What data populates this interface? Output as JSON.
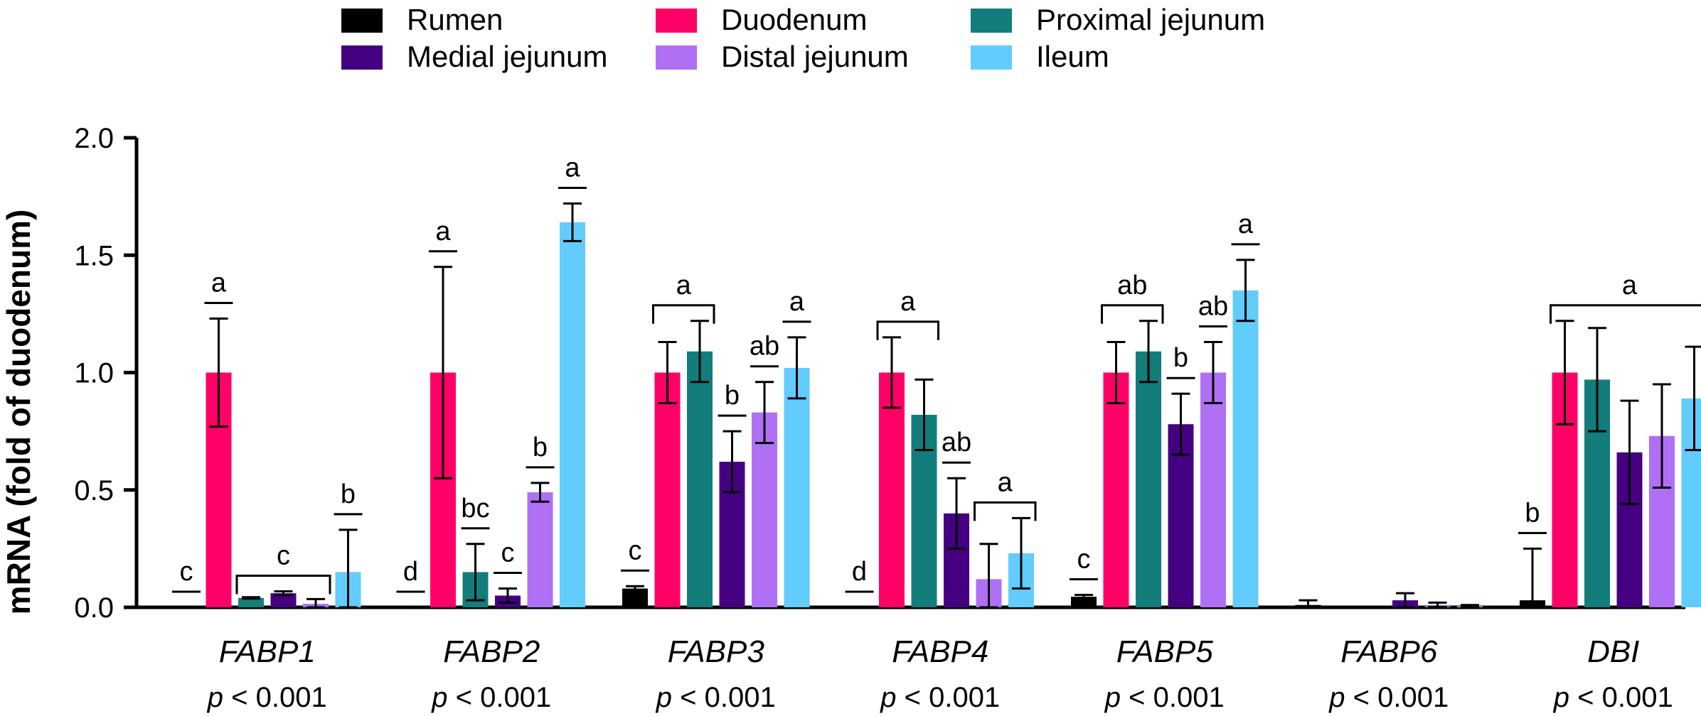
{
  "chart_data": {
    "type": "bar",
    "title": "",
    "ylabel": "mRNA (fold of duodenum)",
    "xlabel": "",
    "ylim": [
      0,
      2.0
    ],
    "yticks": [
      "0.0",
      "0.5",
      "1.0",
      "1.5",
      "2.0"
    ],
    "categories": [
      "FABP1",
      "FABP2",
      "FABP3",
      "FABP4",
      "FABP5",
      "FABP6",
      "DBI"
    ],
    "p_values": [
      "p < 0.001",
      "p < 0.001",
      "p < 0.001",
      "p < 0.001",
      "p < 0.001",
      "p < 0.001",
      "p < 0.001"
    ],
    "series": [
      {
        "name": "Rumen",
        "color": "#000000",
        "values": [
          0.0,
          0.0,
          0.08,
          0.0,
          0.045,
          0.01,
          0.03
        ],
        "errors": [
          0.0,
          0.0,
          0.01,
          0.0,
          0.008,
          0.02,
          0.22
        ]
      },
      {
        "name": "Duodenum",
        "color": "#ff0066",
        "values": [
          1.0,
          1.0,
          1.0,
          1.0,
          1.0,
          0.0,
          1.0
        ],
        "errors": [
          0.23,
          0.45,
          0.13,
          0.15,
          0.13,
          0.0,
          0.22
        ]
      },
      {
        "name": "Proximal jejunum",
        "color": "#127d7a",
        "values": [
          0.04,
          0.15,
          1.09,
          0.82,
          1.09,
          0.0,
          0.97
        ],
        "errors": [
          0.003,
          0.12,
          0.13,
          0.15,
          0.13,
          0.0,
          0.22
        ]
      },
      {
        "name": "Medial jejunum",
        "color": "#450082",
        "values": [
          0.06,
          0.05,
          0.62,
          0.4,
          0.78,
          0.03,
          0.66
        ],
        "errors": [
          0.008,
          0.03,
          0.13,
          0.15,
          0.13,
          0.03,
          0.22
        ]
      },
      {
        "name": "Distal jejunum",
        "color": "#b070f5",
        "values": [
          0.015,
          0.49,
          0.83,
          0.12,
          1.0,
          0.005,
          0.73
        ],
        "errors": [
          0.02,
          0.04,
          0.13,
          0.15,
          0.13,
          0.015,
          0.22
        ]
      },
      {
        "name": "Ileum",
        "color": "#62ccfc",
        "values": [
          0.15,
          1.64,
          1.02,
          0.23,
          1.35,
          0.005,
          0.89
        ],
        "errors": [
          0.18,
          0.08,
          0.13,
          0.15,
          0.13,
          0.005,
          0.22
        ]
      }
    ],
    "significance": [
      {
        "category": "FABP1",
        "letters": [
          {
            "label": "c",
            "bars": [
              0
            ]
          },
          {
            "label": "a",
            "bars": [
              1
            ]
          },
          {
            "label": "c",
            "bars": [
              2,
              3,
              4
            ],
            "bracket": true
          },
          {
            "label": "b",
            "bars": [
              5
            ]
          }
        ]
      },
      {
        "category": "FABP2",
        "letters": [
          {
            "label": "d",
            "bars": [
              0
            ]
          },
          {
            "label": "a",
            "bars": [
              1
            ]
          },
          {
            "label": "bc",
            "bars": [
              2
            ]
          },
          {
            "label": "c",
            "bars": [
              3
            ]
          },
          {
            "label": "b",
            "bars": [
              4
            ]
          },
          {
            "label": "a",
            "bars": [
              5
            ]
          }
        ]
      },
      {
        "category": "FABP3",
        "letters": [
          {
            "label": "c",
            "bars": [
              0
            ]
          },
          {
            "label": "a",
            "bars": [
              1,
              2
            ],
            "bracket": true
          },
          {
            "label": "b",
            "bars": [
              3
            ]
          },
          {
            "label": "ab",
            "bars": [
              4
            ]
          },
          {
            "label": "a",
            "bars": [
              5
            ]
          }
        ]
      },
      {
        "category": "FABP4",
        "letters": [
          {
            "label": "d",
            "bars": [
              0
            ]
          },
          {
            "label": "a",
            "bars": [
              1,
              2
            ],
            "bracket": true
          },
          {
            "label": "ab",
            "bars": [
              3
            ]
          },
          {
            "label": "a",
            "bars": [
              4,
              5
            ],
            "bracket": true
          }
        ]
      },
      {
        "category": "FABP5",
        "letters": [
          {
            "label": "c",
            "bars": [
              0
            ]
          },
          {
            "label": "ab",
            "bars": [
              1,
              2
            ],
            "bracket": true
          },
          {
            "label": "b",
            "bars": [
              3
            ]
          },
          {
            "label": "ab",
            "bars": [
              4
            ]
          },
          {
            "label": "a",
            "bars": [
              5
            ]
          }
        ]
      },
      {
        "category": "FABP6",
        "letters": []
      },
      {
        "category": "DBI",
        "letters": [
          {
            "label": "b",
            "bars": [
              0
            ]
          },
          {
            "label": "a",
            "bars": [
              1,
              2,
              3,
              4,
              5
            ],
            "bracket": true
          }
        ]
      }
    ],
    "legend": {
      "placement": "top-center",
      "entries": [
        "Rumen",
        "Duodenum",
        "Proximal jejunum",
        "Medial jejunum",
        "Distal jejunum",
        "Ileum"
      ]
    }
  }
}
